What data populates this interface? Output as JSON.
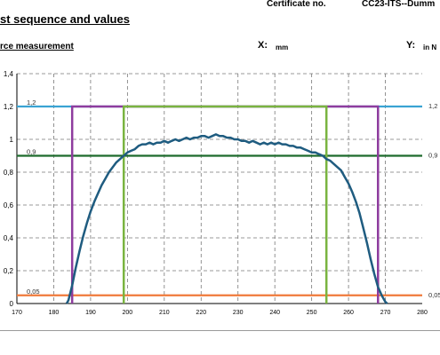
{
  "header": {
    "certificate_label": "Certificate no.",
    "certificate_value": "CC23-ITS--Dumm",
    "title": "st sequence and values",
    "subtitle": "rce measurement",
    "x_label": "X:",
    "x_unit": "mm",
    "y_label": "Y:",
    "y_unit": "in N"
  },
  "colors": {
    "curve": "#1f5c80",
    "limit_top": "#3aa3d3",
    "reference_level": "#1e6b2c",
    "threshold_low": "#f07a3a",
    "window_outer": "#8e3c9e",
    "window_inner": "#7ab440",
    "grid": "#777777"
  },
  "chart_data": {
    "type": "line",
    "xlim": [
      170,
      280
    ],
    "ylim": [
      0,
      1.4
    ],
    "x_ticks": [
      "170",
      "180",
      "190",
      "200",
      "210",
      "220",
      "230",
      "240",
      "250",
      "260",
      "270",
      "280"
    ],
    "y_ticks": [
      "0",
      "0,2",
      "0,4",
      "0,6",
      "0,8",
      "1",
      "1,2",
      "1,4"
    ],
    "grid": true,
    "series": [
      {
        "x": [
          183.5,
          184,
          185,
          186,
          187,
          188,
          189,
          190,
          191,
          192,
          193,
          194,
          195,
          196,
          197,
          198,
          199,
          200,
          201,
          202,
          203,
          204,
          205,
          206,
          207,
          208,
          209,
          210,
          211,
          212,
          213,
          214,
          215,
          216,
          217,
          218,
          219,
          220,
          221,
          222,
          223,
          224,
          225,
          226,
          227,
          228,
          229,
          230,
          231,
          232,
          233,
          234,
          235,
          236,
          237,
          238,
          239,
          240,
          241,
          242,
          243,
          244,
          245,
          246,
          247,
          248,
          249,
          250,
          251,
          252,
          253,
          254,
          255,
          256,
          257,
          258,
          259,
          260,
          261,
          262,
          263,
          264,
          265,
          266,
          267,
          268,
          269,
          270,
          270.5
        ],
        "y": [
          0,
          0.02,
          0.11,
          0.22,
          0.32,
          0.41,
          0.49,
          0.56,
          0.62,
          0.67,
          0.72,
          0.76,
          0.8,
          0.83,
          0.86,
          0.88,
          0.9,
          0.92,
          0.93,
          0.94,
          0.96,
          0.97,
          0.97,
          0.98,
          0.97,
          0.98,
          0.98,
          0.99,
          0.98,
          0.99,
          1,
          0.99,
          1,
          1.01,
          1,
          1.01,
          1.01,
          1.02,
          1.02,
          1.01,
          1.02,
          1.03,
          1.02,
          1.02,
          1.01,
          1.01,
          1,
          1,
          0.99,
          0.99,
          0.98,
          0.99,
          0.98,
          0.97,
          0.98,
          0.97,
          0.98,
          0.97,
          0.98,
          0.97,
          0.97,
          0.96,
          0.96,
          0.95,
          0.95,
          0.94,
          0.93,
          0.92,
          0.92,
          0.91,
          0.9,
          0.88,
          0.87,
          0.85,
          0.83,
          0.81,
          0.77,
          0.73,
          0.68,
          0.62,
          0.55,
          0.46,
          0.37,
          0.27,
          0.18,
          0.1,
          0.05,
          0.01,
          0
        ]
      }
    ],
    "horizontal_lines": [
      {
        "y": 1.2,
        "label_left": "1,2",
        "label_right": "1,2",
        "color_key": "limit_top"
      },
      {
        "y": 0.9,
        "label_left": "0,9",
        "label_right": "0,9",
        "color_key": "reference_level"
      },
      {
        "y": 0.05,
        "label_left": "0,05",
        "label_right": "0,05",
        "color_key": "threshold_low"
      }
    ],
    "boxes": [
      {
        "x_start": 185,
        "x_end": 268,
        "y_top": 1.2,
        "color_key": "window_outer"
      },
      {
        "x_start": 199,
        "x_end": 254,
        "y_top": 1.2,
        "color_key": "window_inner"
      }
    ]
  }
}
